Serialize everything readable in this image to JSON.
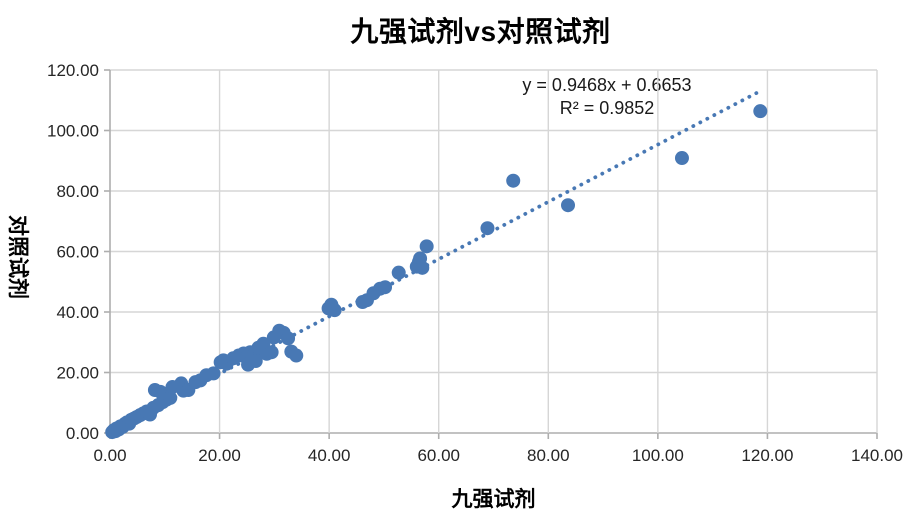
{
  "chart_data": {
    "type": "scatter",
    "title": "九强试剂vs对照试剂",
    "xlabel": "九强试剂",
    "ylabel": "对照试剂",
    "xlim": [
      0,
      140
    ],
    "ylim": [
      0,
      120
    ],
    "x_tick_values": [
      0,
      20,
      40,
      60,
      80,
      100,
      120,
      140
    ],
    "x_tick_labels": [
      "0.00",
      "20.00",
      "40.00",
      "60.00",
      "80.00",
      "100.00",
      "120.00",
      "140.00"
    ],
    "y_tick_values": [
      0,
      20,
      40,
      60,
      80,
      100,
      120
    ],
    "y_tick_labels": [
      "0.00",
      "20.00",
      "40.00",
      "60.00",
      "80.00",
      "100.00",
      "120.00"
    ],
    "grid": true,
    "legend": "none",
    "marker_color": "#4878b4",
    "gridline_color": "#d6d6d6",
    "axis_color": "#aeaeae",
    "trendline": {
      "style": "dotted",
      "color": "#4878b4",
      "slope": 0.9468,
      "intercept": 0.6653,
      "equation": "y = 0.9468x + 0.6653",
      "r2": 0.9852,
      "r2_label": "R² = 0.9852",
      "x_start": 0.4,
      "x_end": 118.7
    },
    "points": [
      [
        0.4,
        0.3
      ],
      [
        0.7,
        0.9
      ],
      [
        1.0,
        0.6
      ],
      [
        1.2,
        1.5
      ],
      [
        1.6,
        1.2
      ],
      [
        1.9,
        2.2
      ],
      [
        2.3,
        2.0
      ],
      [
        2.7,
        3.0
      ],
      [
        3.1,
        3.5
      ],
      [
        3.5,
        3.1
      ],
      [
        3.9,
        4.4
      ],
      [
        4.4,
        4.8
      ],
      [
        4.9,
        5.3
      ],
      [
        5.5,
        5.9
      ],
      [
        6.1,
        6.5
      ],
      [
        6.7,
        7.1
      ],
      [
        7.3,
        6.1
      ],
      [
        7.9,
        8.3
      ],
      [
        8.2,
        14.2
      ],
      [
        8.8,
        9.2
      ],
      [
        9.2,
        13.6
      ],
      [
        9.6,
        10.2
      ],
      [
        10.3,
        11.0
      ],
      [
        11.0,
        11.6
      ],
      [
        11.4,
        15.2
      ],
      [
        13.0,
        16.4
      ],
      [
        13.4,
        14.0
      ],
      [
        14.3,
        14.2
      ],
      [
        15.6,
        16.8
      ],
      [
        16.5,
        17.4
      ],
      [
        17.6,
        19.1
      ],
      [
        18.9,
        19.7
      ],
      [
        20.2,
        23.4
      ],
      [
        20.7,
        24.0
      ],
      [
        21.3,
        22.9
      ],
      [
        22.5,
        24.7
      ],
      [
        23.5,
        25.6
      ],
      [
        24.4,
        26.3
      ],
      [
        24.9,
        24.9
      ],
      [
        25.2,
        22.6
      ],
      [
        25.6,
        26.7
      ],
      [
        26.2,
        25.6
      ],
      [
        26.6,
        23.8
      ],
      [
        27.1,
        28.2
      ],
      [
        28.0,
        29.5
      ],
      [
        28.6,
        26.2
      ],
      [
        29.5,
        26.7
      ],
      [
        29.9,
        31.6
      ],
      [
        30.9,
        33.8
      ],
      [
        31.7,
        33.1
      ],
      [
        32.5,
        31.3
      ],
      [
        33.1,
        26.9
      ],
      [
        34.0,
        25.6
      ],
      [
        39.9,
        41.2
      ],
      [
        40.4,
        42.4
      ],
      [
        41.0,
        40.6
      ],
      [
        46.1,
        43.3
      ],
      [
        46.9,
        43.9
      ],
      [
        48.1,
        46.2
      ],
      [
        49.3,
        47.7
      ],
      [
        50.2,
        48.2
      ],
      [
        52.7,
        53.0
      ],
      [
        56.0,
        55.0
      ],
      [
        56.4,
        56.6
      ],
      [
        56.6,
        57.7
      ],
      [
        57.0,
        54.6
      ],
      [
        57.8,
        61.7
      ],
      [
        68.9,
        67.7
      ],
      [
        73.6,
        83.4
      ],
      [
        83.6,
        75.3
      ],
      [
        104.4,
        90.9
      ],
      [
        118.7,
        106.4
      ]
    ]
  }
}
